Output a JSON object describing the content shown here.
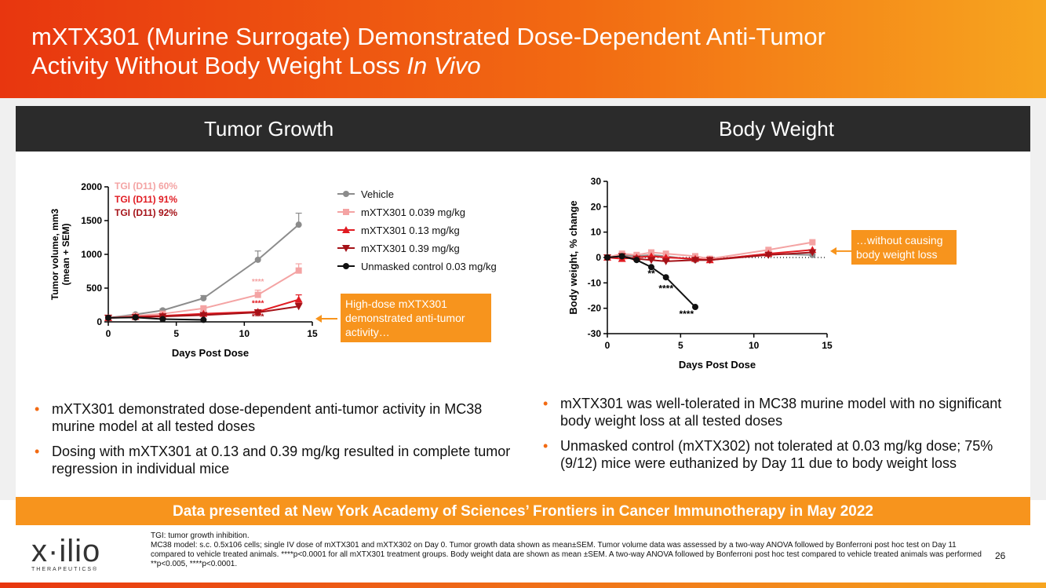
{
  "header": {
    "title_line1": "mXTX301 (Murine Surrogate) Demonstrated Dose-Dependent Anti-Tumor",
    "title_line2_plain": "Activity Without Body Weight Loss ",
    "title_line2_italic": "In Vivo"
  },
  "sections": {
    "left_title": "Tumor Growth",
    "right_title": "Body Weight"
  },
  "chart_data": [
    {
      "type": "line",
      "title": "Tumor Growth",
      "xlabel": "Days Post Dose",
      "ylabel_line1": "Tumor volume, mm3",
      "ylabel_line2": "(mean + SEM)",
      "xlim": [
        0,
        15
      ],
      "ylim": [
        0,
        2000
      ],
      "xticks": [
        "0",
        "5",
        "10",
        "15"
      ],
      "yticks": [
        "0",
        "500",
        "1000",
        "1500",
        "2000"
      ],
      "series": [
        {
          "name": "Vehicle",
          "color": "#8c8c8c",
          "marker": "circle",
          "x": [
            0,
            2,
            4,
            7,
            11,
            14
          ],
          "y": [
            60,
            110,
            170,
            350,
            920,
            1440
          ],
          "err": [
            0,
            15,
            20,
            40,
            130,
            170
          ]
        },
        {
          "name": "mXTX301 0.039 mg/kg",
          "color": "#f4a3a3",
          "marker": "square",
          "x": [
            0,
            2,
            4,
            7,
            11,
            14
          ],
          "y": [
            60,
            90,
            120,
            200,
            400,
            760
          ],
          "err": [
            0,
            10,
            15,
            30,
            70,
            100
          ]
        },
        {
          "name": "mXTX301 0.13 mg/kg",
          "color": "#e11b22",
          "marker": "triangle-up",
          "x": [
            0,
            2,
            4,
            7,
            11,
            14
          ],
          "y": [
            60,
            75,
            90,
            120,
            150,
            330
          ],
          "err": [
            0,
            8,
            10,
            15,
            30,
            70
          ]
        },
        {
          "name": "mXTX301 0.39 mg/kg",
          "color": "#a51218",
          "marker": "triangle-down",
          "x": [
            0,
            2,
            4,
            7,
            11,
            14
          ],
          "y": [
            60,
            70,
            80,
            100,
            140,
            230
          ],
          "err": [
            0,
            8,
            10,
            15,
            25,
            45
          ]
        },
        {
          "name": "Unmasked control 0.03 mg/kg",
          "color": "#111111",
          "marker": "circle",
          "x": [
            0,
            2,
            4,
            7
          ],
          "y": [
            60,
            65,
            40,
            30
          ],
          "err": [
            0,
            5,
            5,
            5
          ]
        }
      ],
      "tgi_labels": [
        {
          "text": "TGI (D11) 60%",
          "color": "#f4a3a3"
        },
        {
          "text": "TGI (D11) 91%",
          "color": "#e11b22"
        },
        {
          "text": "TGI (D11) 92%",
          "color": "#a51218"
        }
      ],
      "annotations": [
        {
          "text": "****",
          "x": 11,
          "y": 560,
          "color": "#f4a3a3"
        },
        {
          "text": "****",
          "x": 11,
          "y": 240,
          "color": "#e11b22"
        },
        {
          "text": "****",
          "x": 11,
          "y": 40,
          "color": "#a51218"
        }
      ]
    },
    {
      "type": "line",
      "title": "Body Weight",
      "xlabel": "Days Post Dose",
      "ylabel": "Body weight, % change",
      "xlim": [
        0,
        15
      ],
      "ylim": [
        -30,
        30
      ],
      "xticks": [
        "0",
        "5",
        "10",
        "15"
      ],
      "yticks": [
        "-30",
        "-20",
        "-10",
        "0",
        "10",
        "20",
        "30"
      ],
      "series": [
        {
          "name": "Vehicle",
          "color": "#8c8c8c",
          "marker": "circle",
          "x": [
            0,
            1,
            2,
            3,
            4,
            6,
            7,
            11,
            14
          ],
          "y": [
            0,
            1,
            0.5,
            1,
            0.5,
            -1,
            -1,
            1.5,
            1
          ]
        },
        {
          "name": "mXTX301 0.039 mg/kg",
          "color": "#f4a3a3",
          "marker": "square",
          "x": [
            0,
            1,
            2,
            3,
            4,
            6,
            7,
            11,
            14
          ],
          "y": [
            0,
            1.5,
            1,
            2,
            1.5,
            0.5,
            -0.5,
            3,
            6
          ]
        },
        {
          "name": "mXTX301 0.13 mg/kg",
          "color": "#e11b22",
          "marker": "triangle-up",
          "x": [
            0,
            1,
            2,
            3,
            4,
            6,
            7,
            11,
            14
          ],
          "y": [
            0,
            -0.5,
            0,
            0.5,
            0,
            -0.5,
            -1,
            1.5,
            3
          ]
        },
        {
          "name": "mXTX301 0.39 mg/kg",
          "color": "#a51218",
          "marker": "triangle-down",
          "x": [
            0,
            1,
            2,
            3,
            4,
            6,
            7,
            11,
            14
          ],
          "y": [
            0,
            0.5,
            -0.5,
            -1,
            -1.5,
            -1,
            -1,
            1,
            2
          ]
        },
        {
          "name": "Unmasked control 0.03 mg/kg",
          "color": "#111111",
          "marker": "circle",
          "x": [
            0,
            1,
            2,
            3,
            4,
            6
          ],
          "y": [
            0,
            0.5,
            -1,
            -3.8,
            -7.8,
            -19.5
          ]
        }
      ],
      "annotations": [
        {
          "text": "**",
          "x": 3,
          "y": -7.5
        },
        {
          "text": "****",
          "x": 4,
          "y": -13.5
        },
        {
          "text": "****",
          "x": 5.4,
          "y": -23.5
        }
      ]
    }
  ],
  "callouts": {
    "left": "High-dose mXTX301 demonstrated anti-tumor activity…",
    "right": "…without causing body weight loss"
  },
  "bullets_left": [
    "mXTX301 demonstrated dose-dependent anti-tumor activity in MC38 murine model at all tested doses",
    "Dosing with mXTX301 at 0.13 and 0.39 mg/kg resulted in complete tumor regression in individual mice"
  ],
  "bullets_right": [
    "mXTX301 was well-tolerated in MC38 murine model with no significant body weight loss at all tested doses",
    "Unmasked control (mXTX302) not tolerated at 0.03 mg/kg dose; 75% (9/12) mice were euthanized by Day 11 due to body weight loss"
  ],
  "banner": "Data presented at New York Academy of Sciences’ Frontiers in Cancer Immunotherapy in May 2022",
  "logo": {
    "name": "x·ilio",
    "sub": "THERAPEUTICS®"
  },
  "footnote": {
    "line1": "TGI: tumor growth inhibition.",
    "line2": "MC38 model: s.c. 0.5x106 cells; single IV dose of mXTX301 and mXTX302 on Day 0. Tumor growth data shown as mean±SEM. Tumor volume data was assessed by a two-way ANOVA followed by Bonferroni post hoc test on Day 11 compared to vehicle treated animals. ****p<0.0001 for all mXTX301 treatment groups. Body weight data are shown as mean ±SEM. A two-way ANOVA followed by Bonferroni post hoc test compared to vehicle treated animals was performed **p<0.005, ****p<0.0001."
  },
  "page_number": "26",
  "colors": {
    "accent": "#f7941d",
    "header_start": "#e8360f",
    "header_end": "#f7a51f",
    "dark_bar": "#2b2b2b"
  }
}
